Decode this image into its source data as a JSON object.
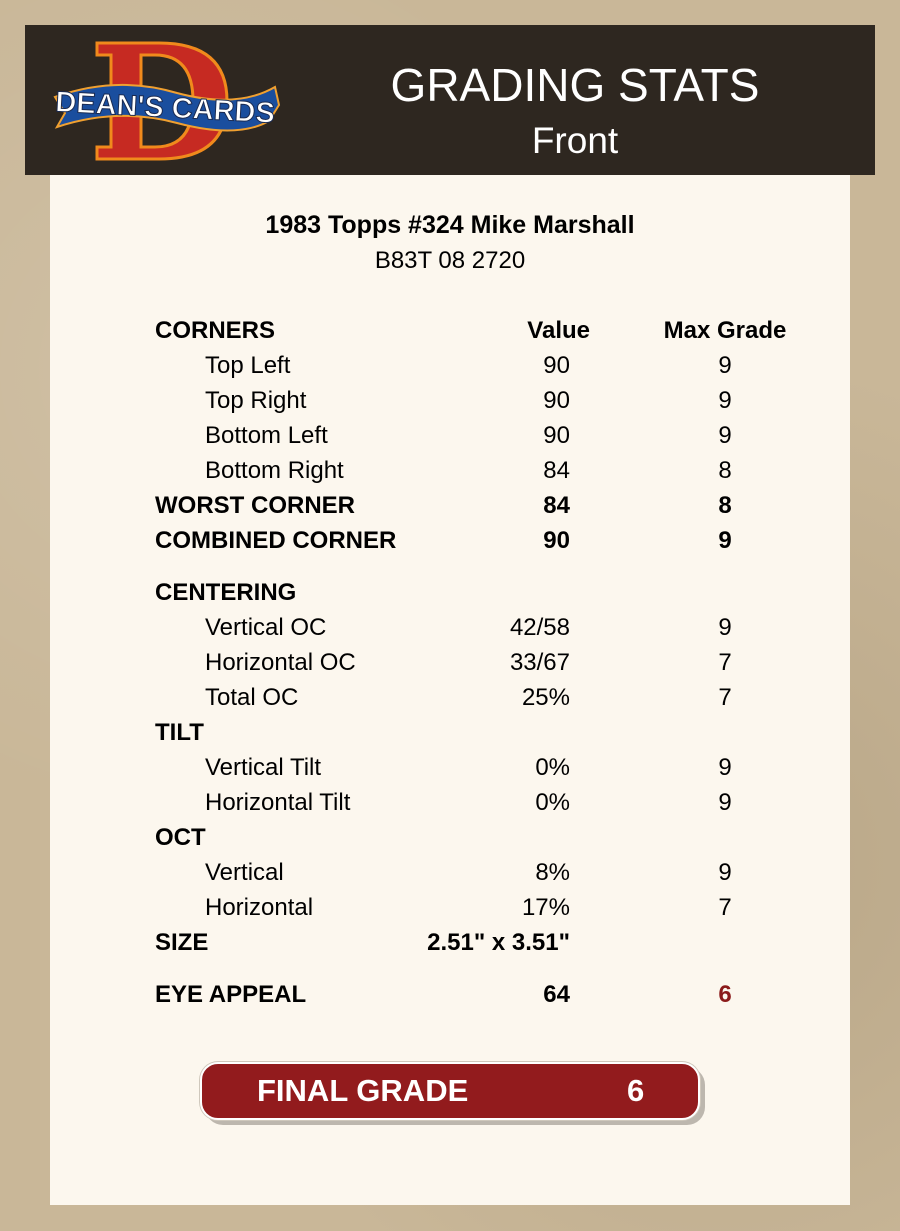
{
  "logo": {
    "letter": "D",
    "text": "DEAN'S CARDS"
  },
  "header": {
    "title": "GRADING STATS",
    "subtitle": "Front"
  },
  "card": {
    "title": "1983 Topps #324 Mike Marshall",
    "code": "B83T 08 2720"
  },
  "columns": {
    "value": "Value",
    "max_grade": "Max Grade"
  },
  "rows": [
    {
      "label": "CORNERS",
      "value": "",
      "max": "",
      "type": "head"
    },
    {
      "label": "Top Left",
      "value": "90",
      "max": "9",
      "type": "sub"
    },
    {
      "label": "Top Right",
      "value": "90",
      "max": "9",
      "type": "sub"
    },
    {
      "label": "Bottom Left",
      "value": "90",
      "max": "9",
      "type": "sub"
    },
    {
      "label": "Bottom Right",
      "value": "84",
      "max": "8",
      "type": "sub"
    },
    {
      "label": "WORST CORNER",
      "value": "84",
      "max": "8",
      "type": "head"
    },
    {
      "label": "COMBINED CORNER",
      "value": "90",
      "max": "9",
      "type": "head"
    },
    {
      "label": "CENTERING",
      "value": "",
      "max": "",
      "type": "head"
    },
    {
      "label": "Vertical OC",
      "value": "42/58",
      "max": "9",
      "type": "sub"
    },
    {
      "label": "Horizontal OC",
      "value": "33/67",
      "max": "7",
      "type": "sub"
    },
    {
      "label": "Total OC",
      "value": "25%",
      "max": "7",
      "type": "sub"
    },
    {
      "label": "TILT",
      "value": "",
      "max": "",
      "type": "head"
    },
    {
      "label": "Vertical Tilt",
      "value": "0%",
      "max": "9",
      "type": "sub"
    },
    {
      "label": "Horizontal Tilt",
      "value": "0%",
      "max": "9",
      "type": "sub"
    },
    {
      "label": "OCT",
      "value": "",
      "max": "",
      "type": "head"
    },
    {
      "label": "Vertical",
      "value": "8%",
      "max": "9",
      "type": "sub"
    },
    {
      "label": "Horizontal",
      "value": "17%",
      "max": "7",
      "type": "sub"
    },
    {
      "label": "SIZE",
      "value": "2.51\" x 3.51\"",
      "max": "",
      "type": "head"
    },
    {
      "label": "EYE APPEAL",
      "value": "64",
      "max": "6",
      "type": "head",
      "highlight": true
    }
  ],
  "final_grade": {
    "label": "FINAL GRADE",
    "value": "6"
  },
  "colors": {
    "header_bg": "#2e2720",
    "card_bg": "#fcf7ee",
    "accent_red": "#921b1d",
    "eye_appeal_grade": "#8b1a1a"
  }
}
